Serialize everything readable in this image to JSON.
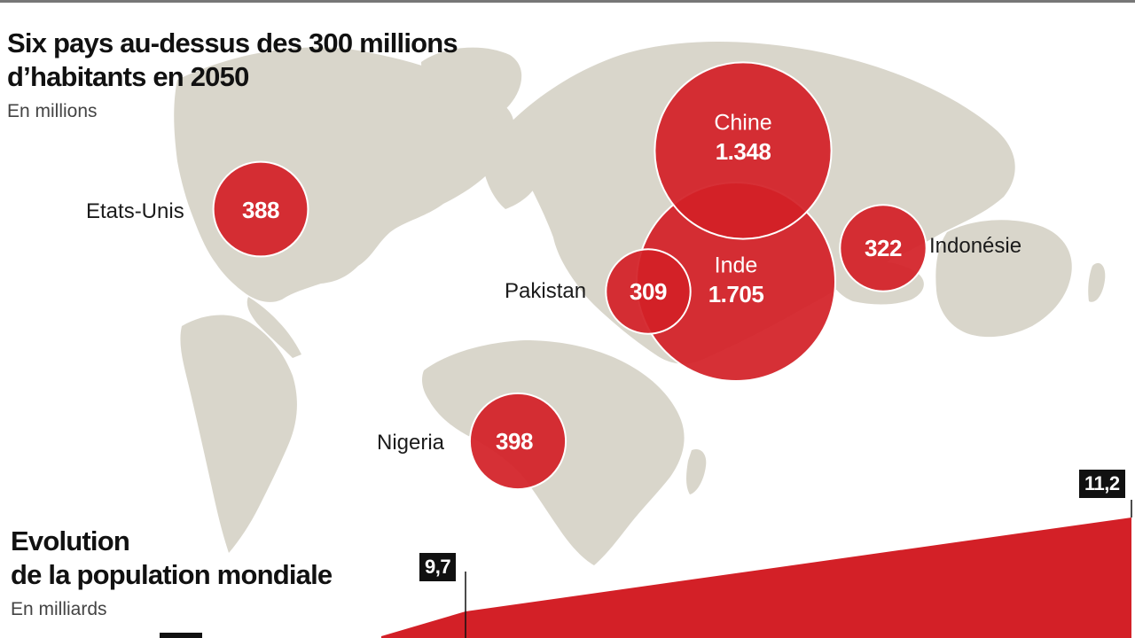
{
  "map": {
    "title_line1": "Six pays au-dessus des 300 millions",
    "title_line2": "d’habitants en 2050",
    "subtitle": "En millions",
    "bubble_color": "#d32027",
    "land_color": "#d9d6cb"
  },
  "chart_data": [
    {
      "type": "bubble-map",
      "title": "Six pays au-dessus des 300 millions d’habitants en 2050",
      "subtitle": "En millions",
      "unit": "millions",
      "points": [
        {
          "name": "Chine",
          "value": 1348,
          "label": "1.348"
        },
        {
          "name": "Inde",
          "value": 1705,
          "label": "1.705"
        },
        {
          "name": "Etats-Unis",
          "value": 388,
          "label": "388"
        },
        {
          "name": "Nigeria",
          "value": 398,
          "label": "398"
        },
        {
          "name": "Pakistan",
          "value": 309,
          "label": "309"
        },
        {
          "name": "Indonésie",
          "value": 322,
          "label": "322"
        }
      ]
    },
    {
      "type": "area",
      "title": "Evolution de la population mondiale",
      "subtitle": "En milliards",
      "unit": "milliards",
      "points": [
        {
          "value": 9.7,
          "label": "9,7"
        },
        {
          "value": 11.2,
          "label": "11,2"
        }
      ],
      "color": "#d32027"
    }
  ],
  "evolution": {
    "title_line1": "Evolution",
    "title_line2": "de la population mondiale",
    "subtitle": "En milliards"
  }
}
